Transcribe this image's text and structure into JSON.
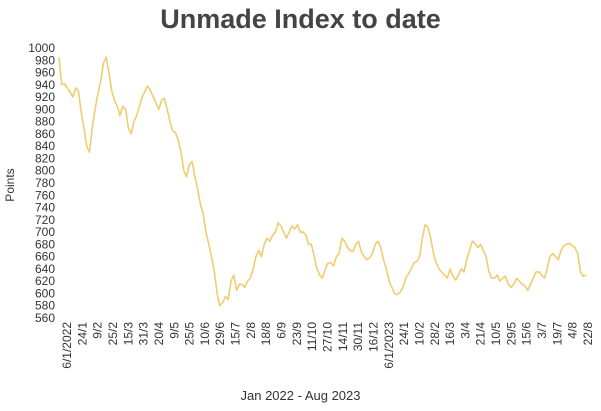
{
  "chart_data": {
    "type": "line",
    "title": "Unmade Index to date",
    "xlabel": "Jan 2022 - Aug 2023",
    "ylabel": "Points",
    "ylim": [
      560,
      1000
    ],
    "yticks": [
      560,
      580,
      600,
      620,
      640,
      660,
      680,
      700,
      720,
      740,
      760,
      780,
      800,
      820,
      840,
      860,
      880,
      900,
      920,
      940,
      960,
      980,
      1000
    ],
    "grid": false,
    "line_color": "#f0cd6e",
    "xtick_labels": [
      "6/1/2022",
      "24/1",
      "9/2",
      "25/2",
      "15/3",
      "31/3",
      "20/4",
      "9/5",
      "25/5",
      "10/6",
      "29/6",
      "15/7",
      "2/8",
      "18/8",
      "6/9",
      "23/9",
      "11/10",
      "27/10",
      "14/11",
      "30/11",
      "16/12",
      "6/1/2023",
      "24/1",
      "10/2",
      "28/2",
      "16/3",
      "3/4",
      "21/4",
      "10/5",
      "29/5",
      "15/6",
      "3/7",
      "19/7",
      "4/8",
      "22/8"
    ],
    "series": [
      {
        "values": [
          985,
          940,
          942,
          935,
          928,
          920,
          935,
          930,
          895,
          870,
          840,
          830,
          870,
          900,
          925,
          945,
          975,
          985,
          960,
          930,
          915,
          905,
          890,
          905,
          900,
          870,
          860,
          880,
          890,
          905,
          920,
          930,
          938,
          930,
          920,
          910,
          900,
          915,
          918,
          900,
          880,
          865,
          862,
          850,
          830,
          800,
          790,
          810,
          815,
          790,
          770,
          745,
          730,
          700,
          680,
          660,
          635,
          600,
          580,
          585,
          595,
          590,
          620,
          630,
          605,
          615,
          615,
          610,
          620,
          625,
          640,
          660,
          670,
          660,
          680,
          690,
          685,
          695,
          700,
          715,
          710,
          700,
          690,
          700,
          710,
          705,
          712,
          700,
          700,
          695,
          680,
          680,
          660,
          640,
          630,
          625,
          640,
          650,
          650,
          645,
          660,
          665,
          690,
          685,
          675,
          670,
          668,
          680,
          685,
          668,
          660,
          655,
          658,
          665,
          680,
          685,
          675,
          655,
          640,
          620,
          610,
          600,
          598,
          602,
          610,
          625,
          632,
          640,
          650,
          652,
          660,
          690,
          712,
          708,
          690,
          665,
          650,
          640,
          635,
          630,
          625,
          640,
          628,
          622,
          630,
          640,
          635,
          655,
          670,
          685,
          682,
          675,
          680,
          670,
          660,
          635,
          625,
          625,
          630,
          620,
          625,
          628,
          615,
          610,
          615,
          625,
          620,
          615,
          612,
          605,
          615,
          625,
          635,
          635,
          630,
          625,
          640,
          660,
          665,
          660,
          655,
          670,
          678,
          680,
          682,
          678,
          675,
          665,
          635,
          628,
          630
        ]
      }
    ]
  }
}
